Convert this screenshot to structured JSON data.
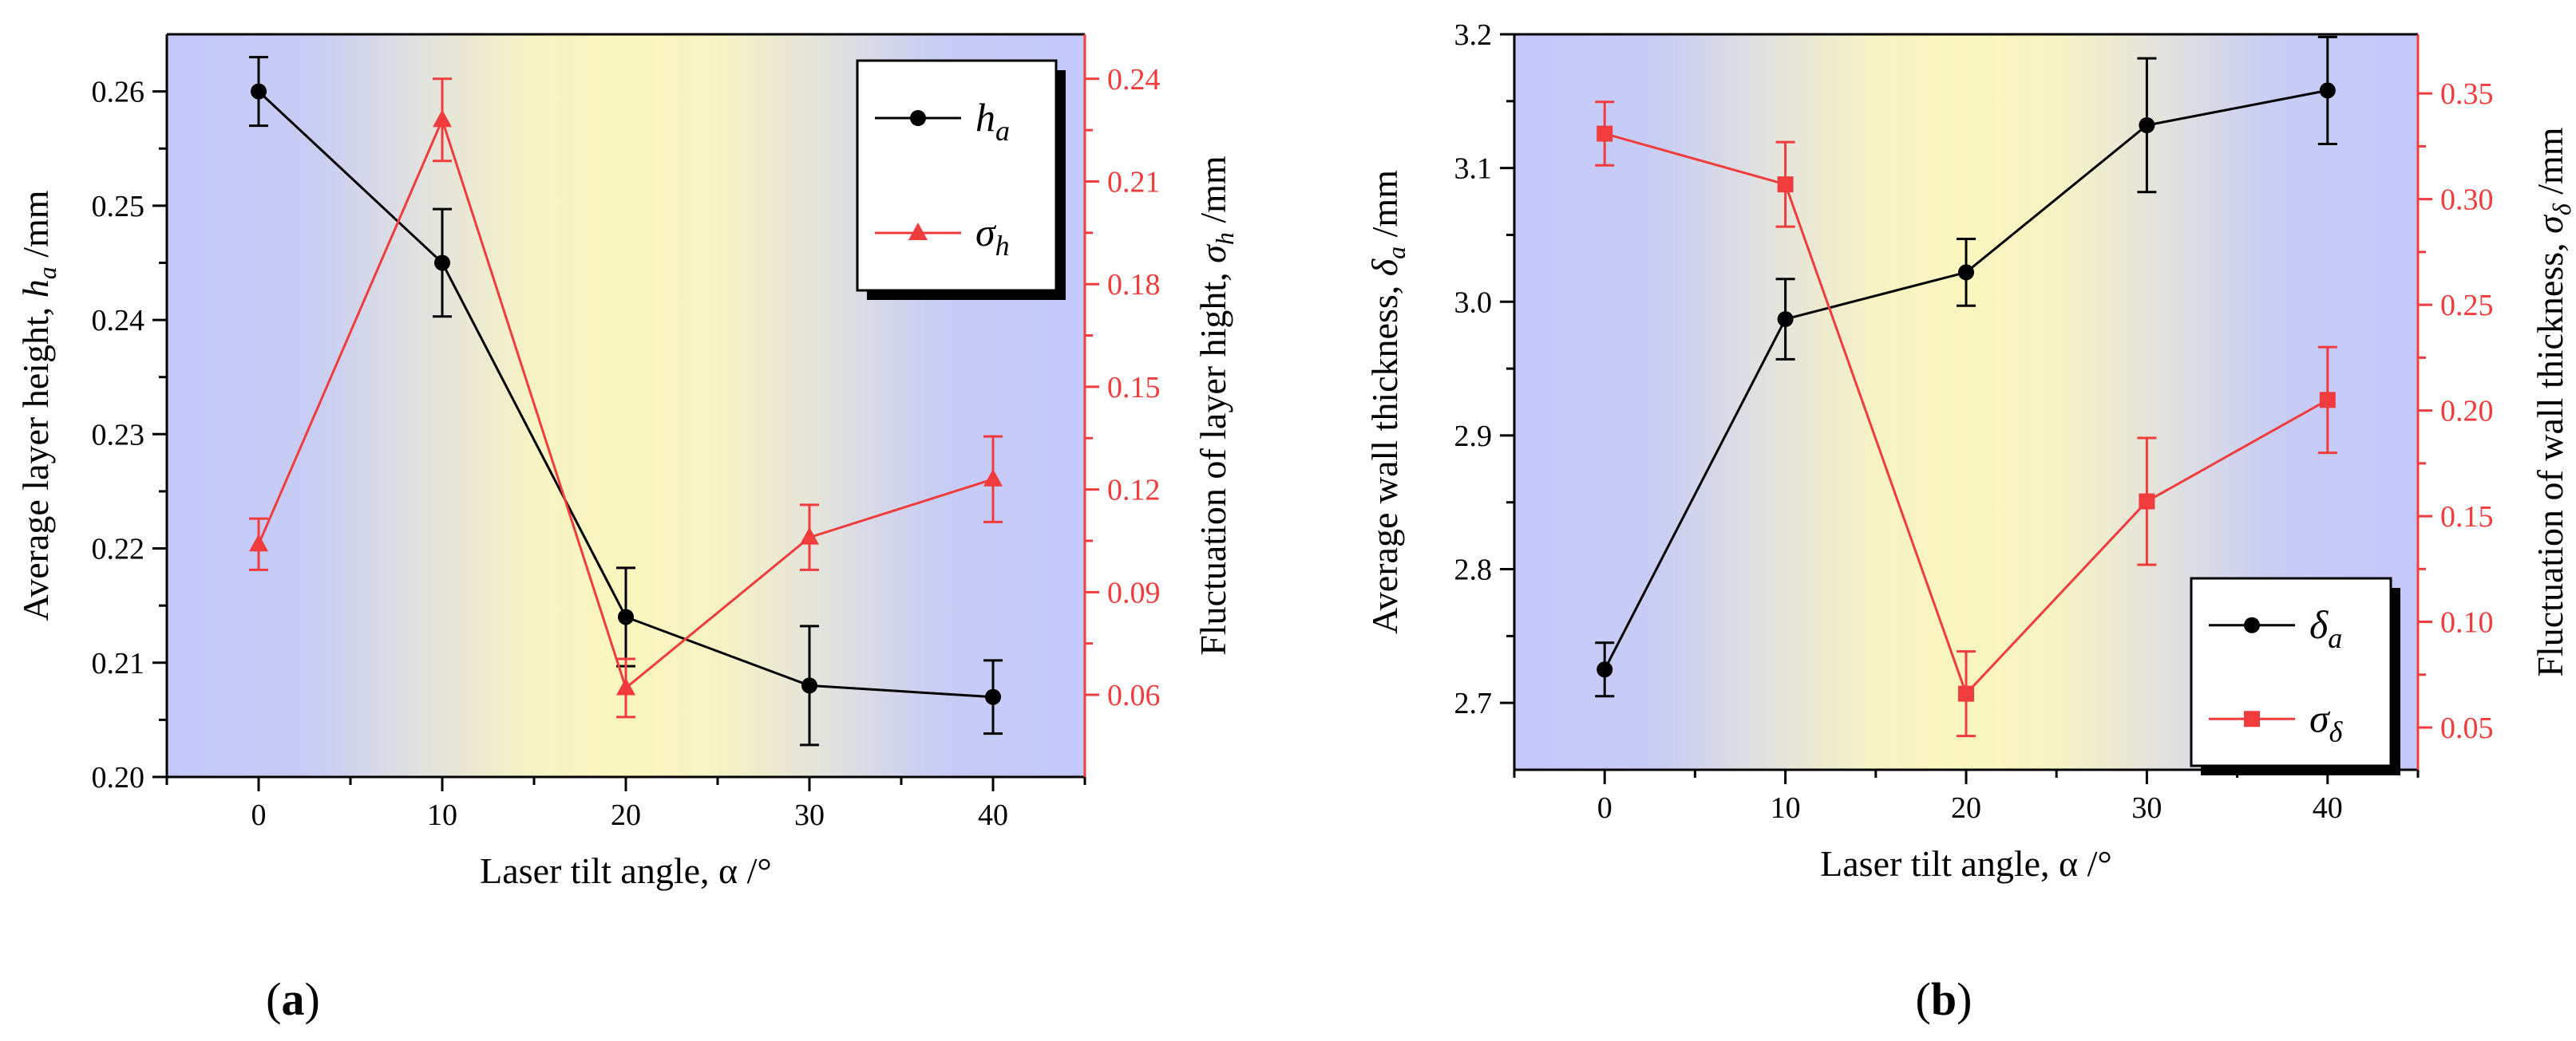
{
  "charts_order": [
    "a",
    "b"
  ],
  "chart_data": [
    {
      "id": "a",
      "type": "line",
      "panel_label": "(a)",
      "panel_letter": "a",
      "x": [
        0,
        10,
        20,
        30,
        40
      ],
      "xlim": [
        -5,
        45
      ],
      "xticks": [
        0,
        10,
        20,
        30,
        40
      ],
      "xlabel": "Laser tilt angle, α /°",
      "left_axis": {
        "label_prefix": "Average layer height, ",
        "label_symbol": "h",
        "label_sub": "a",
        "label_suffix": " /mm",
        "ylim": [
          0.2,
          0.265
        ],
        "ticks": [
          "0.20",
          "0.21",
          "0.22",
          "0.23",
          "0.24",
          "0.25",
          "0.26"
        ],
        "color": "#000000"
      },
      "right_axis": {
        "label_prefix": "Fluctuation of layer hight, ",
        "label_symbol": "σ",
        "label_sub": "h",
        "label_suffix": " /mm",
        "ylim": [
          0.036,
          0.253
        ],
        "ticks": [
          "0.06",
          "0.09",
          "0.12",
          "0.15",
          "0.18",
          "0.21",
          "0.24"
        ],
        "color": "#f03c3c"
      },
      "series": [
        {
          "name": "h_a",
          "symbol": "h",
          "sub": "a",
          "axis": "left",
          "marker": "circle",
          "color": "#000000",
          "values": [
            0.26,
            0.245,
            0.214,
            0.208,
            0.207
          ],
          "errors": [
            0.003,
            0.0047,
            0.0043,
            0.0052,
            0.0032
          ]
        },
        {
          "name": "sigma_h",
          "symbol": "σ",
          "sub": "h",
          "axis": "right",
          "marker": "triangle",
          "color": "#f03c3c",
          "values": [
            0.104,
            0.228,
            0.062,
            0.106,
            0.123
          ],
          "errors": [
            0.0075,
            0.012,
            0.0085,
            0.0095,
            0.0125
          ]
        }
      ],
      "legend_position": "top-right"
    },
    {
      "id": "b",
      "type": "line",
      "panel_label": "(b)",
      "panel_letter": "b",
      "x": [
        0,
        10,
        20,
        30,
        40
      ],
      "xlim": [
        -5,
        45
      ],
      "xticks": [
        0,
        10,
        20,
        30,
        40
      ],
      "xlabel": "Laser tilt angle, α /°",
      "left_axis": {
        "label_prefix": "Average wall thickness, ",
        "label_symbol": "δ",
        "label_sub": "a",
        "label_suffix": " /mm",
        "ylim": [
          2.65,
          3.2
        ],
        "ticks": [
          "2.7",
          "2.8",
          "2.9",
          "3.0",
          "3.1",
          "3.2"
        ],
        "color": "#000000"
      },
      "right_axis": {
        "label_prefix": "Fluctuation of wall thickness, ",
        "label_symbol": "σ",
        "label_sub": "δ",
        "label_suffix": " /mm",
        "ylim": [
          0.03,
          0.378
        ],
        "ticks": [
          "0.05",
          "0.10",
          "0.15",
          "0.20",
          "0.25",
          "0.30",
          "0.35"
        ],
        "color": "#f03c3c"
      },
      "series": [
        {
          "name": "delta_a",
          "symbol": "δ",
          "sub": "a",
          "axis": "left",
          "marker": "circle",
          "color": "#000000",
          "values": [
            2.725,
            2.987,
            3.022,
            3.132,
            3.158
          ],
          "errors": [
            0.02,
            0.03,
            0.025,
            0.05,
            0.04
          ]
        },
        {
          "name": "sigma_delta",
          "symbol": "σ",
          "sub": "δ",
          "axis": "right",
          "marker": "square",
          "color": "#f03c3c",
          "values": [
            0.331,
            0.307,
            0.066,
            0.157,
            0.205
          ],
          "errors": [
            0.015,
            0.02,
            0.02,
            0.03,
            0.025
          ]
        }
      ],
      "legend_position": "bottom-right"
    }
  ]
}
